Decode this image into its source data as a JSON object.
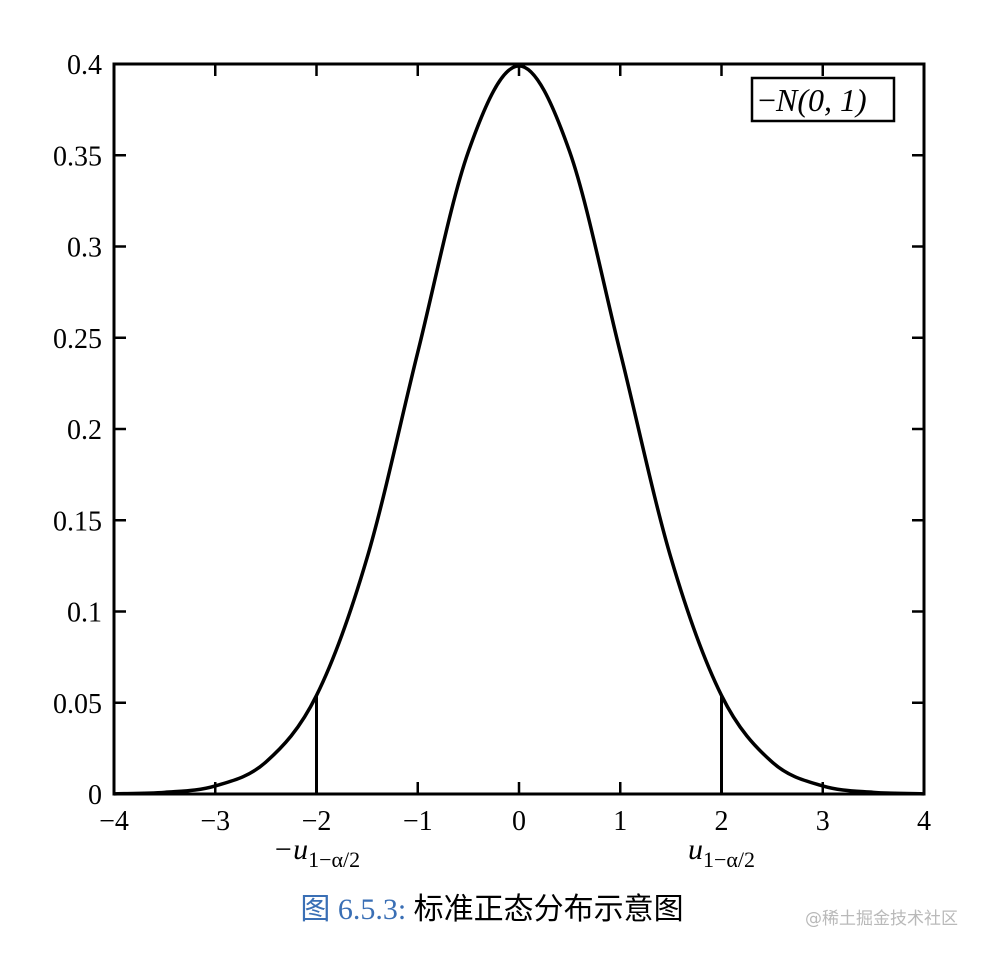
{
  "chart_data": {
    "type": "line",
    "title": "",
    "xlabel": "",
    "ylabel": "",
    "xlim": [
      -4,
      4
    ],
    "ylim": [
      0,
      0.4
    ],
    "x_ticks": [
      "−4",
      "−3",
      "−2",
      "−1",
      "0",
      "1",
      "2",
      "3",
      "4"
    ],
    "x_tick_values": [
      -4,
      -3,
      -2,
      -1,
      0,
      1,
      2,
      3,
      4
    ],
    "y_ticks": [
      "0",
      "0.05",
      "0.1",
      "0.15",
      "0.2",
      "0.25",
      "0.3",
      "0.35",
      "0.4"
    ],
    "y_tick_values": [
      0,
      0.05,
      0.1,
      0.15,
      0.2,
      0.25,
      0.3,
      0.35,
      0.4
    ],
    "grid": false,
    "legend_position": "top-right",
    "series": [
      {
        "name": "N(0, 1)",
        "color": "#000000",
        "x": [
          -4,
          -3.5,
          -3,
          -2.5,
          -2,
          -1.5,
          -1,
          -0.5,
          0,
          0.5,
          1,
          1.5,
          2,
          2.5,
          3,
          3.5,
          4
        ],
        "y": [
          0.0001,
          0.0009,
          0.0044,
          0.0175,
          0.054,
          0.1295,
          0.242,
          0.352,
          0.399,
          0.352,
          0.242,
          0.1295,
          0.054,
          0.0175,
          0.0044,
          0.0009,
          0.0001
        ]
      }
    ],
    "critical_lines": [
      {
        "x": -2,
        "label_main": "−u",
        "label_sub": "1−α/2"
      },
      {
        "x": 2,
        "label_main": "u",
        "label_sub": "1−α/2"
      }
    ]
  },
  "legend": {
    "prefix": "−",
    "text": "N(0, 1)"
  },
  "caption": {
    "label": "图 6.5.3:",
    "text": "标准正态分布示意图"
  },
  "watermark": "@稀土掘金技术社区"
}
